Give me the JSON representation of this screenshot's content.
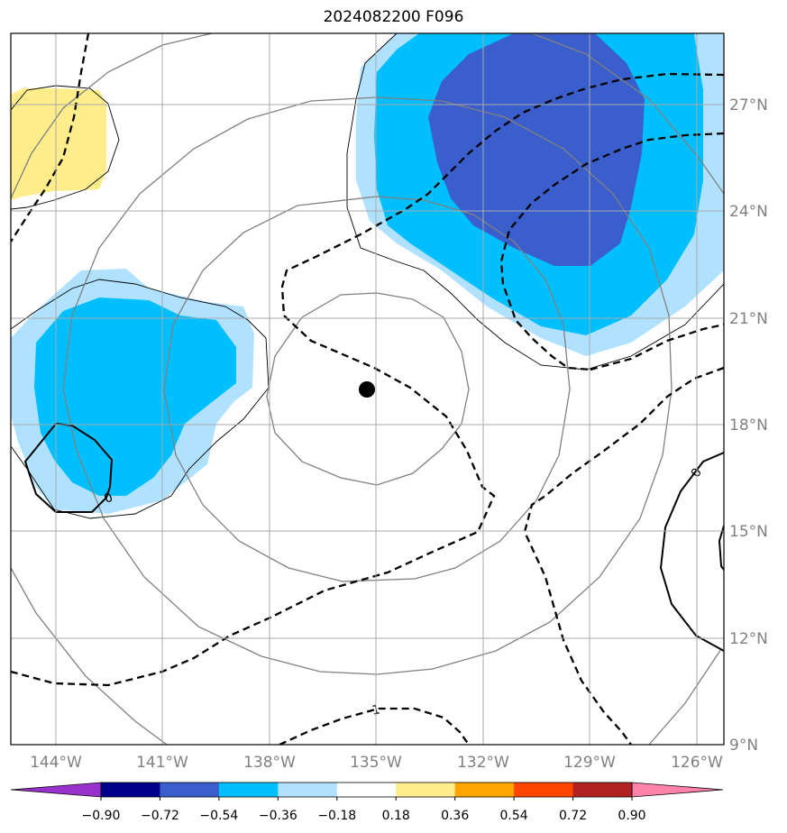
{
  "title": "2024082200 F096",
  "map": {
    "lon_ticks": [
      "144°W",
      "141°W",
      "138°W",
      "135°W",
      "132°W",
      "129°W",
      "126°W"
    ],
    "lat_ticks": [
      "27°N",
      "24°N",
      "21°N",
      "18°N",
      "15°N",
      "12°N",
      "9°N"
    ],
    "contour_labels": [
      "0",
      "0",
      "1"
    ],
    "storm_center": {
      "lon": "135.2°W",
      "lat": "19°N"
    }
  },
  "colorbar": {
    "ticks": [
      "−0.90",
      "−0.72",
      "−0.54",
      "−0.36",
      "−0.18",
      "0.18",
      "0.36",
      "0.54",
      "0.72",
      "0.90"
    ],
    "colors": [
      "#9932CC",
      "#00008B",
      "#3A5FCD",
      "#00BFFF",
      "#B0E2FF",
      "#FFFFFF",
      "#FFEC8B",
      "#FFA500",
      "#FF4500",
      "#B22222",
      "#FF82AB"
    ]
  }
}
